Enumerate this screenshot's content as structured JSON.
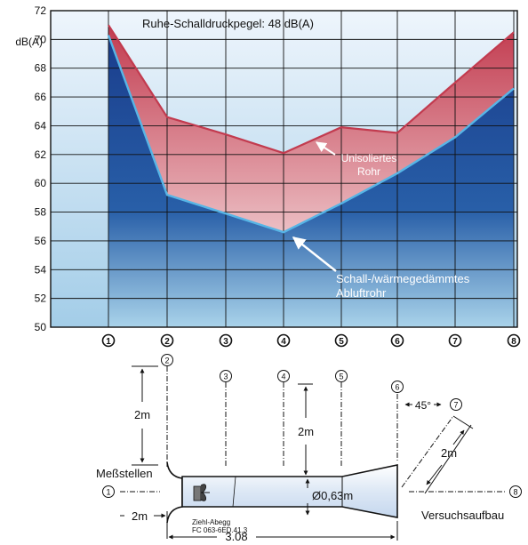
{
  "chart_data": {
    "type": "area",
    "title": "Ruhe-Schalldruckpegel: 48 dB(A)",
    "ylabel": "dB(A)",
    "ylim": [
      50,
      72
    ],
    "yticks": [
      50,
      52,
      54,
      56,
      58,
      60,
      62,
      64,
      66,
      68,
      70,
      72
    ],
    "categories": [
      "1",
      "2",
      "3",
      "4",
      "5",
      "6",
      "7",
      "8"
    ],
    "grid": true,
    "series": [
      {
        "name": "Unisoliertes Rohr",
        "values": [
          71.0,
          64.6,
          63.4,
          62.1,
          63.9,
          63.5,
          67.0,
          70.5
        ],
        "color": "#c23b4f"
      },
      {
        "name": "Schall-/wärmegedämmtes Abluftrohr",
        "values": [
          70.3,
          59.2,
          57.9,
          56.6,
          58.6,
          60.7,
          63.2,
          66.6
        ],
        "color": "#1d4799"
      }
    ],
    "annotations": [
      {
        "text_lines": [
          "Unisoliertes",
          "Rohr"
        ],
        "points_to": "4"
      },
      {
        "text_lines": [
          "Schall-/wärmegedämmtes",
          "Abluftrohr"
        ],
        "points_to": "4"
      }
    ],
    "colors": {
      "plot_bg_top": "#eef5fc",
      "plot_bg_bottom": "#a3cde8",
      "border": "#111111"
    }
  },
  "diagram": {
    "points": [
      "1",
      "2",
      "3",
      "4",
      "5",
      "6",
      "7",
      "8"
    ],
    "labels": {
      "measuring_points": "Meßstellen",
      "setup": "Versuchsaufbau",
      "height_a": "2m",
      "height_b": "2m",
      "dist_start": "2m",
      "dist_diag": "2m",
      "angle": "45°",
      "diameter": "Ø0,63m",
      "length": "3.08",
      "fan_line1": "Ziehl-Abegg",
      "fan_line2": "FC 063-6ED.41.3"
    }
  }
}
